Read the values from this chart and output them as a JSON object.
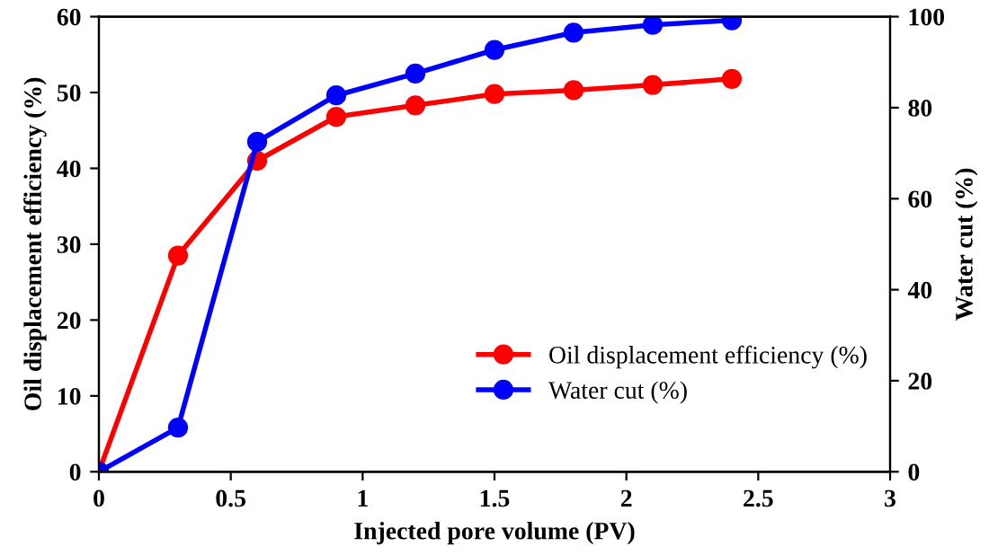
{
  "chart_data": {
    "type": "line",
    "xlabel": "Injected pore volume (PV)",
    "ylabel": "Oil displacement efficiency (%)",
    "y2label": "Water cut (%)",
    "x": [
      0,
      0.3,
      0.6,
      0.9,
      1.2,
      1.5,
      1.8,
      2.1,
      2.4
    ],
    "series": [
      {
        "name": "Oil displacement efficiency (%)",
        "color": "#ff0000",
        "values": [
          0,
          28.5,
          41,
          46.8,
          48.3,
          49.8,
          50.3,
          51,
          51.8
        ]
      },
      {
        "name": "Water cut (%)",
        "color": "#0000ff",
        "axis": "y2",
        "values": [
          0,
          9.7,
          72.5,
          82.7,
          87.5,
          92.7,
          96.5,
          98.2,
          99.2
        ]
      }
    ],
    "xlim": [
      0,
      3
    ],
    "xticks": [
      0,
      0.5,
      1,
      1.5,
      2,
      2.5,
      3
    ],
    "ylim": [
      0,
      60
    ],
    "yticks": [
      0,
      10,
      20,
      30,
      40,
      50,
      60
    ],
    "y2lim": [
      0,
      100
    ],
    "y2ticks": [
      0,
      20,
      40,
      60,
      80,
      100
    ],
    "marker": "circle",
    "line_style": "solid",
    "grid": false,
    "legend": "bottom right"
  }
}
